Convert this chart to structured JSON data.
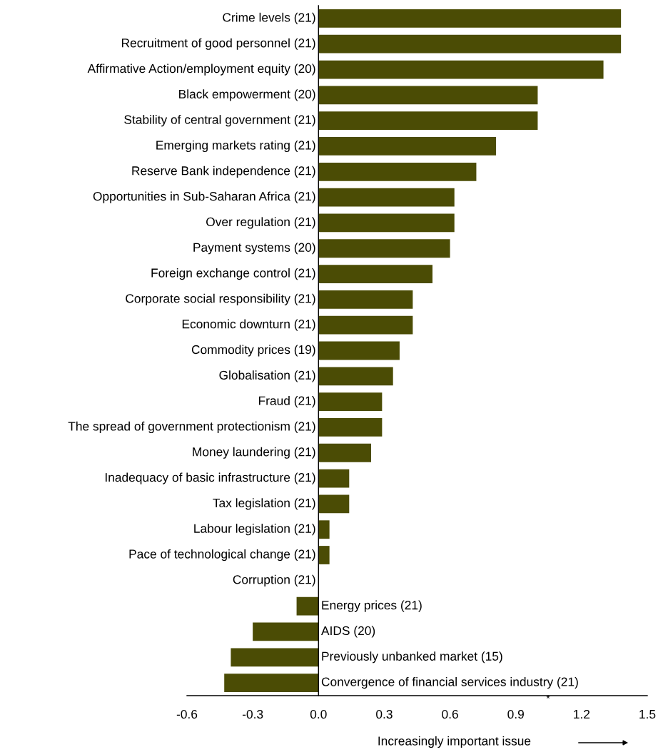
{
  "chart_data": {
    "type": "bar",
    "orientation": "horizontal",
    "categories": [
      "Crime levels (21)",
      "Recruitment of good personnel (21)",
      "Affirmative Action/employment equity (20)",
      "Black empowerment (20)",
      "Stability of central government (21)",
      "Emerging markets rating (21)",
      "Reserve Bank independence (21)",
      "Opportunities in Sub-Saharan Africa (21)",
      "Over regulation (21)",
      "Payment systems (20)",
      "Foreign exchange control (21)",
      "Corporate social responsibility (21)",
      "Economic downturn (21)",
      "Commodity prices (19)",
      "Globalisation (21)",
      "Fraud (21)",
      "The spread of government protectionism (21)",
      "Money laundering (21)",
      "Inadequacy of basic infrastructure (21)",
      "Tax legislation (21)",
      "Labour legislation (21)",
      "Pace of technological change (21)",
      "Corruption (21)",
      "Energy prices (21)",
      "AIDS (20)",
      "Previously unbanked market (15)",
      "Convergence of financial services industry (21)"
    ],
    "values": [
      1.38,
      1.38,
      1.3,
      1.0,
      1.0,
      0.81,
      0.72,
      0.62,
      0.62,
      0.6,
      0.52,
      0.43,
      0.43,
      0.37,
      0.34,
      0.29,
      0.29,
      0.24,
      0.14,
      0.14,
      0.05,
      0.05,
      0,
      -0.1,
      -0.3,
      -0.4,
      -0.43
    ],
    "color": "#4b4c05",
    "xlim": [
      -0.6,
      1.5
    ],
    "xticks": [
      {
        "value": -0.6,
        "label": "-0.6"
      },
      {
        "value": -0.3,
        "label": "-0.3"
      },
      {
        "value": 0,
        "label": "0.0"
      },
      {
        "value": 0.3,
        "label": "0.3"
      },
      {
        "value": 0.6,
        "label": "0.6"
      },
      {
        "value": 0.9,
        "label": "0.9"
      },
      {
        "value": 1.2,
        "label": "1.2"
      },
      {
        "value": 1.5,
        "label": "1.5"
      }
    ],
    "xlabel": "Increasingly important issue",
    "annotations": [
      "*"
    ],
    "grid": false
  }
}
